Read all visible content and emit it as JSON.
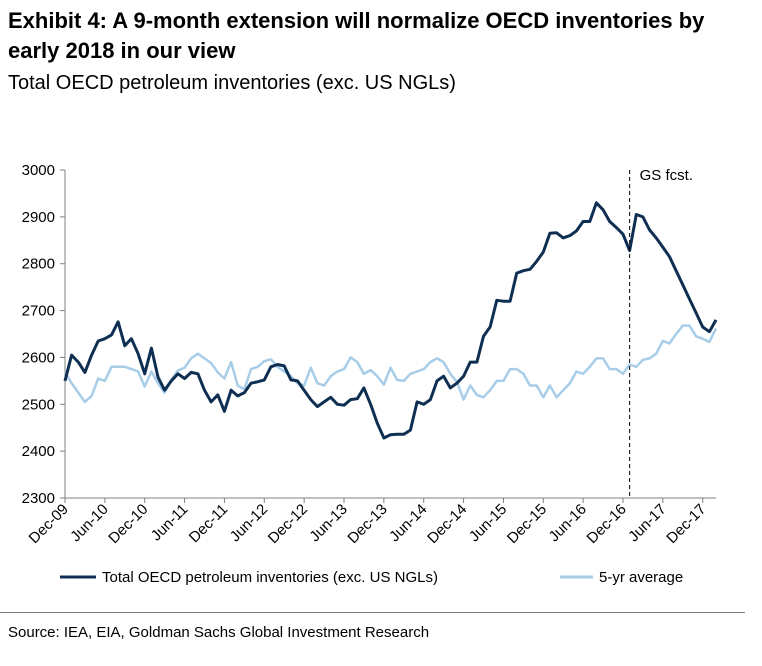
{
  "header": {
    "title": "Exhibit 4: A 9-month extension will normalize OECD inventories by early 2018 in our view",
    "subtitle": "Total OECD petroleum inventories (exc. US NGLs)"
  },
  "footer": {
    "source": "Source: IEA, EIA, Goldman Sachs Global Investment Research"
  },
  "chart_data": {
    "type": "line",
    "title": "",
    "xlabel": "",
    "ylabel": "",
    "ylim": [
      2300,
      3000
    ],
    "y_ticks": [
      2300,
      2400,
      2500,
      2600,
      2700,
      2800,
      2900,
      3000
    ],
    "x_tick_labels": [
      "Dec-09",
      "Jun-10",
      "Dec-10",
      "Jun-11",
      "Dec-11",
      "Jun-12",
      "Dec-12",
      "Jun-13",
      "Dec-13",
      "Jun-14",
      "Dec-14",
      "Jun-15",
      "Dec-15",
      "Jun-16",
      "Dec-16",
      "Jun-17",
      "Dec-17"
    ],
    "x_start": "Dec-09",
    "x_end": "Feb-18",
    "grid": false,
    "legend_position": "bottom",
    "annotations": [
      {
        "text": "GS fcst.",
        "x": "Jan-17",
        "style": "dashed-vertical-line"
      }
    ],
    "colors": {
      "Total OECD petroleum inventories (exc. US NGLs)": "#0f2f52",
      "5-yr average": "#a7cde9"
    },
    "series": [
      {
        "name": "Total OECD petroleum inventories (exc. US NGLs)",
        "values": [
          2550,
          2605,
          2590,
          2568,
          2605,
          2635,
          2640,
          2648,
          2676,
          2625,
          2640,
          2608,
          2565,
          2620,
          2558,
          2530,
          2550,
          2565,
          2555,
          2568,
          2565,
          2530,
          2505,
          2520,
          2485,
          2530,
          2518,
          2525,
          2545,
          2548,
          2552,
          2580,
          2585,
          2582,
          2552,
          2550,
          2530,
          2510,
          2495,
          2505,
          2515,
          2500,
          2498,
          2510,
          2512,
          2535,
          2500,
          2460,
          2428,
          2435,
          2436,
          2436,
          2445,
          2505,
          2500,
          2510,
          2550,
          2560,
          2535,
          2545,
          2560,
          2590,
          2590,
          2645,
          2665,
          2722,
          2720,
          2720,
          2780,
          2785,
          2788,
          2805,
          2825,
          2865,
          2866,
          2855,
          2860,
          2870,
          2890,
          2890,
          2930,
          2915,
          2890,
          2877,
          2863,
          2828,
          2905,
          2900,
          2872,
          2855,
          2835,
          2815,
          2785,
          2755,
          2725,
          2695,
          2665,
          2655,
          2680
        ]
      },
      {
        "name": "5-yr average",
        "values": [
          2568,
          2545,
          2525,
          2505,
          2518,
          2555,
          2550,
          2580,
          2580,
          2580,
          2575,
          2570,
          2538,
          2570,
          2545,
          2525,
          2552,
          2572,
          2578,
          2598,
          2608,
          2598,
          2588,
          2568,
          2555,
          2590,
          2540,
          2532,
          2575,
          2580,
          2592,
          2596,
          2580,
          2570,
          2560,
          2545,
          2540,
          2578,
          2545,
          2540,
          2560,
          2570,
          2575,
          2600,
          2590,
          2565,
          2573,
          2560,
          2542,
          2578,
          2552,
          2550,
          2565,
          2570,
          2575,
          2590,
          2598,
          2590,
          2565,
          2548,
          2510,
          2540,
          2520,
          2515,
          2530,
          2550,
          2550,
          2575,
          2575,
          2565,
          2540,
          2540,
          2515,
          2540,
          2515,
          2530,
          2545,
          2570,
          2565,
          2580,
          2598,
          2598,
          2575,
          2575,
          2565,
          2585,
          2580,
          2595,
          2598,
          2608,
          2635,
          2630,
          2650,
          2668,
          2668,
          2645,
          2640,
          2633,
          2662
        ]
      }
    ]
  }
}
